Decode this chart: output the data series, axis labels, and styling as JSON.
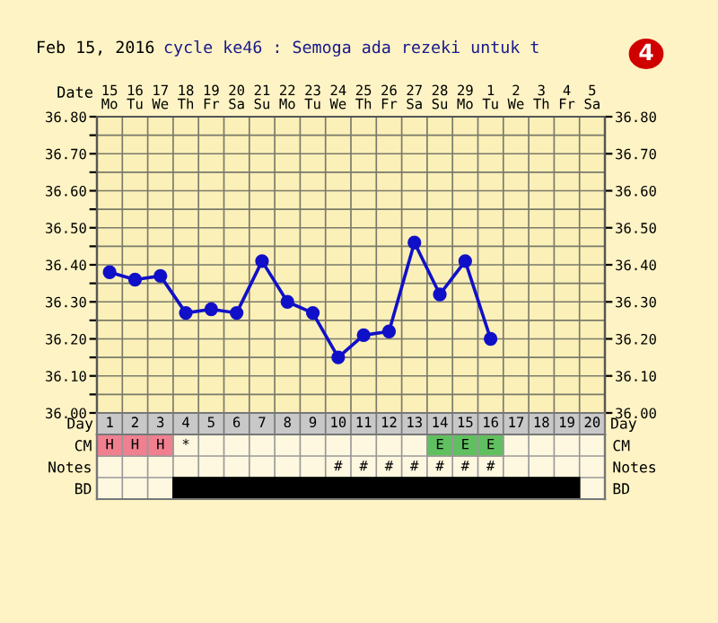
{
  "chart_data": [
    {
      "type": "line",
      "title": "Feb 15, 2016",
      "subtitle": "cycle ke46 : Semoga ada rezeki untuk t",
      "xlabel": "Date",
      "annotations": [
        "4"
      ],
      "categories": [
        "15\nMo",
        "16\nTu",
        "17\nWe",
        "18\nTh",
        "19\nFr",
        "20\nSa",
        "21\nSu",
        "22\nMo",
        "23\nTu",
        "24\nWe",
        "25\nTh",
        "26\nFr",
        "27\nSa",
        "28\nSu",
        "29\nMo",
        "1\nTu",
        "2\nWe",
        "3\nTh",
        "4\nFr",
        "5\nSa"
      ],
      "series": [
        {
          "color": "#1010c8",
          "values": [
            36.38,
            36.36,
            36.37,
            36.27,
            36.28,
            36.27,
            36.41,
            36.3,
            36.27,
            36.15,
            36.21,
            36.22,
            36.46,
            36.32,
            36.41,
            36.2,
            null,
            null,
            null,
            null
          ]
        }
      ],
      "marker": "circle",
      "line_style": "solid",
      "grid": true,
      "legend": false,
      "ylim": [
        36.0,
        36.8
      ],
      "yticks": [
        {
          "value": 36.0,
          "label": "36.00"
        },
        {
          "value": 36.05,
          "label": null
        },
        {
          "value": 36.1,
          "label": "36.10"
        },
        {
          "value": 36.15,
          "label": null
        },
        {
          "value": 36.2,
          "label": "36.20"
        },
        {
          "value": 36.25,
          "label": null
        },
        {
          "value": 36.3,
          "label": "36.30"
        },
        {
          "value": 36.35,
          "label": null
        },
        {
          "value": 36.4,
          "label": "36.40"
        },
        {
          "value": 36.45,
          "label": null
        },
        {
          "value": 36.5,
          "label": "36.50"
        },
        {
          "value": 36.55,
          "label": null
        },
        {
          "value": 36.6,
          "label": "36.60"
        },
        {
          "value": 36.65,
          "label": null
        },
        {
          "value": 36.7,
          "label": "36.70"
        },
        {
          "value": 36.75,
          "label": null
        },
        {
          "value": 36.8,
          "label": "36.80"
        }
      ],
      "y2lim": [
        36.0,
        36.8
      ],
      "y2ticks": [
        {
          "value": 36.0,
          "label": "36.00"
        },
        {
          "value": 36.1,
          "label": "36.10"
        },
        {
          "value": 36.2,
          "label": "36.20"
        },
        {
          "value": 36.3,
          "label": "36.30"
        },
        {
          "value": 36.4,
          "label": "36.40"
        },
        {
          "value": 36.5,
          "label": "36.50"
        },
        {
          "value": 36.6,
          "label": "36.60"
        },
        {
          "value": 36.7,
          "label": "36.70"
        },
        {
          "value": 36.8,
          "label": "36.80"
        }
      ]
    },
    {
      "type": "heatmap",
      "xlabel": "Day",
      "cells": [
        [
          null,
          null,
          null,
          null,
          null,
          null,
          null,
          null,
          null,
          null,
          null,
          null,
          null,
          null,
          null,
          null,
          null,
          null,
          null,
          null
        ],
        [
          null,
          null,
          null,
          null,
          null,
          null,
          null,
          null,
          null,
          null,
          null,
          null,
          null,
          null,
          null,
          null,
          null,
          null,
          null,
          null
        ],
        [
          null,
          null,
          null,
          null,
          null,
          null,
          null,
          null,
          null,
          null,
          null,
          null,
          null,
          null,
          null,
          null,
          null,
          null,
          null,
          null
        ]
      ],
      "categories": [
        "1",
        "2",
        "3",
        "4",
        "5",
        "6",
        "7",
        "8",
        "9",
        "10",
        "11",
        "12",
        "13",
        "14",
        "15",
        "16",
        "17",
        "18",
        "19",
        "20"
      ],
      "y_categories": [
        "CM",
        "Notes",
        "BD"
      ],
      "y2_categories": [
        "CM",
        "Notes",
        "BD"
      ],
      "cell_labels": [
        [
          "H",
          "H",
          "H",
          "*",
          null,
          null,
          null,
          null,
          null,
          null,
          null,
          null,
          null,
          "E",
          "E",
          "E",
          null,
          null,
          null,
          null
        ],
        [
          null,
          null,
          null,
          null,
          null,
          null,
          null,
          null,
          null,
          "#",
          "#",
          "#",
          "#",
          "#",
          "#",
          "#",
          null,
          null,
          null,
          null
        ],
        [
          null,
          null,
          null,
          null,
          null,
          null,
          null,
          null,
          null,
          null,
          null,
          null,
          null,
          null,
          null,
          null,
          null,
          null,
          null,
          null
        ]
      ],
      "colors": [
        [
          "#f08090",
          "#f08090",
          "#f08090",
          null,
          null,
          null,
          null,
          null,
          null,
          null,
          null,
          null,
          null,
          "#60c060",
          "#60c060",
          "#60c060",
          null,
          null,
          null,
          null
        ],
        [
          null,
          null,
          null,
          null,
          null,
          null,
          null,
          null,
          null,
          null,
          null,
          null,
          null,
          null,
          null,
          null,
          null,
          null,
          null,
          null
        ],
        [
          null,
          null,
          null,
          "#000000",
          "#000000",
          "#000000",
          "#000000",
          "#000000",
          "#000000",
          "#000000",
          "#000000",
          "#000000",
          "#000000",
          "#000000",
          "#000000",
          "#000000",
          "#000000",
          "#000000",
          "#000000",
          null
        ]
      ]
    }
  ]
}
